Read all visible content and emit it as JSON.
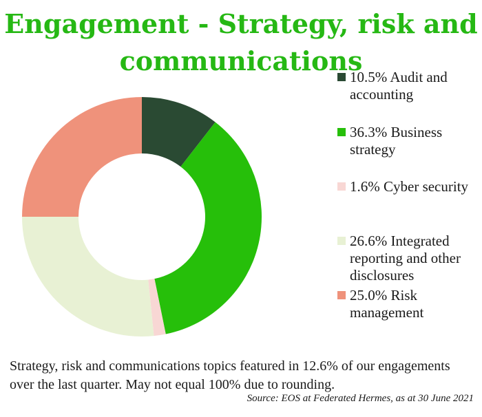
{
  "chart_data": {
    "type": "pie",
    "title": "Engagement - Strategy, risk and communications",
    "categories": [
      "Audit and accounting",
      "Business strategy",
      "Cyber security",
      "Integrated reporting and other disclosures",
      "Risk management"
    ],
    "values": [
      10.5,
      36.3,
      1.6,
      26.6,
      25.0
    ],
    "legend_labels": [
      "10.5% Audit and accounting",
      "36.3% Business strategy",
      "1.6% Cyber security",
      "26.6% Integrated reporting and other disclosures",
      "25.0% Risk management"
    ],
    "colors": [
      "#2a4a33",
      "#26bf0a",
      "#f8d7d4",
      "#e8f1d4",
      "#ef927b"
    ],
    "donut": true,
    "legend_position": "right"
  },
  "footnote": "Strategy, risk and communications topics featured in 12.6% of our engagements over the last quarter. May not equal 100% due to rounding.",
  "source": "Source: EOS at Federated Hermes, as at 30 June 2021"
}
